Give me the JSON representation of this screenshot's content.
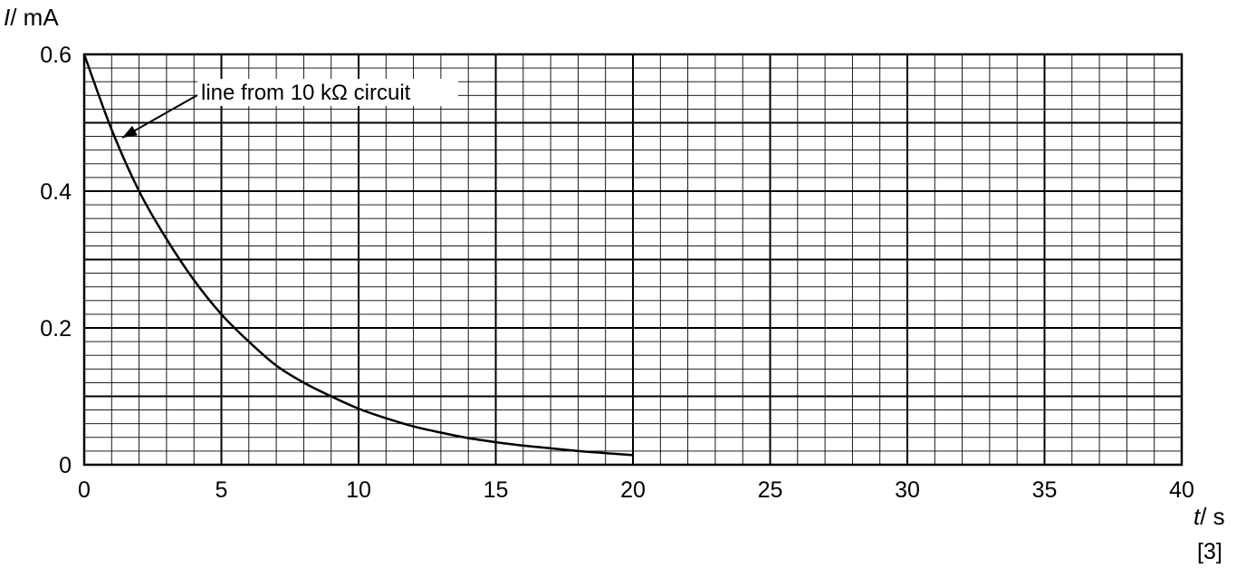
{
  "chart_data": {
    "type": "line",
    "title": "",
    "x_axis": {
      "label_symbol": "t",
      "label_unit": "/ s",
      "range": [
        0,
        40
      ],
      "ticks": [
        "0",
        "5",
        "10",
        "15",
        "20",
        "25",
        "30",
        "35",
        "40"
      ],
      "major_step": 5,
      "minor_step": 1
    },
    "y_axis": {
      "label_symbol": "I",
      "label_unit": "/ mA",
      "range": [
        0,
        0.6
      ],
      "ticks": [
        "0",
        "0.2",
        "0.4",
        "0.6"
      ],
      "major_step": 0.1,
      "minor_step": 0.02
    },
    "grid": true,
    "series": [
      {
        "name": "",
        "x": [
          0,
          1,
          2,
          3,
          4,
          5,
          6,
          7,
          8,
          9,
          10,
          11,
          12,
          13,
          14,
          15,
          16,
          17,
          18,
          19,
          20
        ],
        "y": [
          0.6,
          0.49,
          0.4,
          0.33,
          0.27,
          0.22,
          0.18,
          0.145,
          0.12,
          0.1,
          0.082,
          0.068,
          0.056,
          0.047,
          0.039,
          0.033,
          0.028,
          0.024,
          0.02,
          0.017,
          0.014
        ]
      }
    ],
    "annotations": [
      {
        "text": "line from 10 kΩ circuit",
        "points_to_x": 1.1
      }
    ]
  },
  "marks": "[3]",
  "colors": {
    "grid": "#000000",
    "curve": "#000000",
    "background": "#ffffff"
  }
}
